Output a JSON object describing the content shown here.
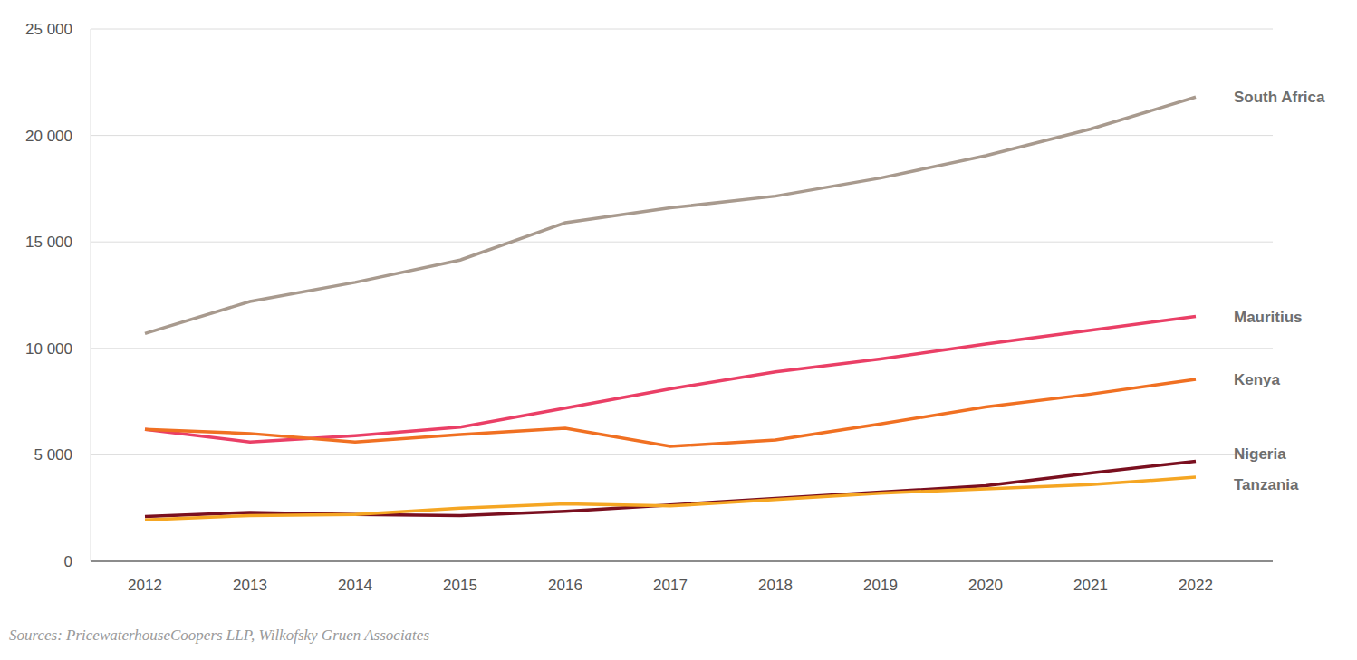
{
  "chart_data": {
    "type": "line",
    "categories": [
      "2012",
      "2013",
      "2014",
      "2015",
      "2016",
      "2017",
      "2018",
      "2019",
      "2020",
      "2021",
      "2022"
    ],
    "series": [
      {
        "name": "South Africa",
        "color": "#a89a8e",
        "values": [
          10700,
          12200,
          13100,
          14150,
          15900,
          16600,
          17150,
          18000,
          19050,
          20300,
          21800
        ]
      },
      {
        "name": "Mauritius",
        "color": "#ea3f66",
        "values": [
          6200,
          5600,
          5900,
          6300,
          7200,
          8100,
          8900,
          9500,
          10200,
          10850,
          11500
        ]
      },
      {
        "name": "Kenya",
        "color": "#f07022",
        "values": [
          6200,
          6000,
          5600,
          5950,
          6250,
          5400,
          5700,
          6450,
          7250,
          7850,
          8550
        ]
      },
      {
        "name": "Nigeria",
        "color": "#7a0f1f",
        "values": [
          2100,
          2300,
          2200,
          2150,
          2350,
          2650,
          2950,
          3250,
          3550,
          4150,
          4700
        ]
      },
      {
        "name": "Tanzania",
        "color": "#f5a623",
        "values": [
          1950,
          2150,
          2200,
          2500,
          2700,
          2600,
          2900,
          3200,
          3400,
          3600,
          3950
        ]
      }
    ],
    "ylim": [
      0,
      25000
    ],
    "yticks": [
      0,
      {
        "value": 5000,
        "label": "5 000"
      },
      {
        "value": 10000,
        "label": "10 000"
      },
      {
        "value": 15000,
        "label": "15 000"
      },
      {
        "value": 20000,
        "label": "20 000"
      },
      {
        "value": 25000,
        "label": "25 000"
      }
    ],
    "grid": true,
    "source": "Sources: PricewaterhouseCoopers LLP, Wilkofsky Gruen Associates"
  }
}
